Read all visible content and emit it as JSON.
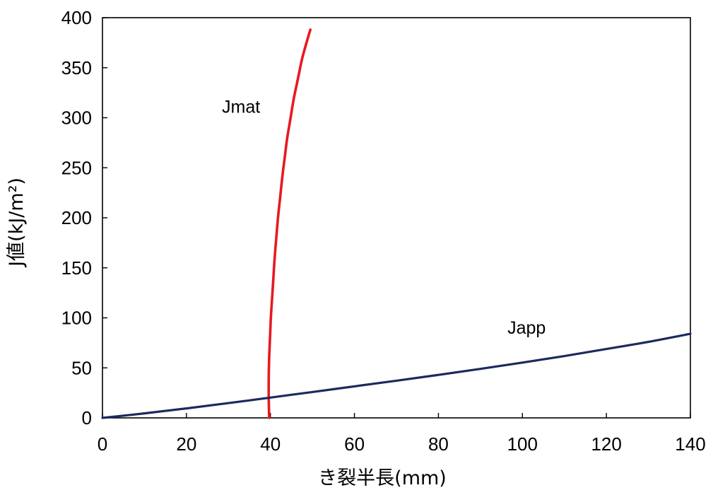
{
  "chart_data": {
    "type": "line",
    "xlabel": "き裂半長(mm)",
    "ylabel": "J値(kJ/m²)",
    "xlim": [
      0,
      140
    ],
    "ylim": [
      0,
      400
    ],
    "x_ticks": [
      0,
      20,
      40,
      60,
      80,
      100,
      120,
      140
    ],
    "y_ticks": [
      0,
      50,
      100,
      150,
      200,
      250,
      300,
      350,
      400
    ],
    "x_tick_labels": [
      "0",
      "20",
      "40",
      "60",
      "80",
      "100",
      "120",
      "140"
    ],
    "y_tick_labels": [
      "0",
      "50",
      "100",
      "150",
      "200",
      "250",
      "300",
      "350",
      "400"
    ],
    "grid": false,
    "series": [
      {
        "name": "Jmat",
        "color": "#e8191f",
        "points": [
          [
            39.7,
            0
          ],
          [
            39.6,
            20
          ],
          [
            39.6,
            40
          ],
          [
            39.7,
            60
          ],
          [
            39.9,
            80
          ],
          [
            40.1,
            100
          ],
          [
            40.4,
            120
          ],
          [
            40.7,
            140
          ],
          [
            41.0,
            160
          ],
          [
            41.4,
            180
          ],
          [
            41.8,
            200
          ],
          [
            42.3,
            220
          ],
          [
            42.8,
            240
          ],
          [
            43.4,
            260
          ],
          [
            44.0,
            280
          ],
          [
            44.8,
            300
          ],
          [
            45.6,
            320
          ],
          [
            46.6,
            340
          ],
          [
            47.6,
            360
          ],
          [
            49.0,
            381
          ],
          [
            49.5,
            388
          ]
        ]
      },
      {
        "name": "Japp",
        "color": "#1c2a5e",
        "points": [
          [
            0,
            0
          ],
          [
            10,
            4.5
          ],
          [
            20,
            9.5
          ],
          [
            30,
            14.8
          ],
          [
            40,
            20.3
          ],
          [
            50,
            25.9
          ],
          [
            60,
            31.5
          ],
          [
            70,
            37.2
          ],
          [
            80,
            43.0
          ],
          [
            90,
            49.0
          ],
          [
            100,
            55.3
          ],
          [
            110,
            61.8
          ],
          [
            120,
            68.8
          ],
          [
            130,
            76.0
          ],
          [
            140,
            84.0
          ]
        ]
      }
    ],
    "annotations": [
      {
        "text": "Jmat",
        "x": 33,
        "y": 305
      },
      {
        "text": "Japp",
        "x": 101,
        "y": 84
      }
    ]
  }
}
